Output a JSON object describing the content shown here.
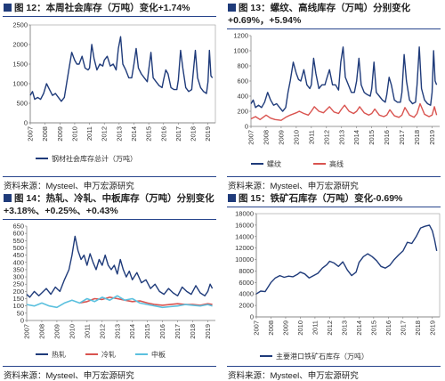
{
  "panels": [
    {
      "id": "p12",
      "title": "图 12：本周社会库存（万吨）变化+1.74%",
      "source": "资料来源：Mysteel、申万宏源研究",
      "chart_data": {
        "type": "line",
        "ylim": [
          0,
          2500
        ],
        "yticks": [
          0,
          500,
          1000,
          1500,
          2000,
          2500
        ],
        "xlim": [
          2007,
          2019.5
        ],
        "xticks": [
          "2007",
          "2008",
          "2009",
          "2010",
          "2011",
          "2012",
          "2013",
          "2014",
          "2015",
          "2016",
          "2017",
          "2018",
          "2019"
        ],
        "box": true,
        "series": [
          {
            "name": "钢材社会库存总计（万吨）",
            "color": "#1f3b7a",
            "x": [
              2007,
              2007.15,
              2007.3,
              2007.5,
              2007.7,
              2007.9,
              2008.1,
              2008.3,
              2008.5,
              2008.7,
              2008.9,
              2009.1,
              2009.3,
              2009.45,
              2009.6,
              2009.8,
              2010.0,
              2010.15,
              2010.3,
              2010.5,
              2010.7,
              2010.9,
              2011.0,
              2011.15,
              2011.3,
              2011.5,
              2011.7,
              2011.9,
              2012.0,
              2012.2,
              2012.4,
              2012.6,
              2012.8,
              2012.95,
              2013.1,
              2013.25,
              2013.45,
              2013.65,
              2013.85,
              2014.0,
              2014.15,
              2014.3,
              2014.5,
              2014.7,
              2014.9,
              2015.0,
              2015.15,
              2015.3,
              2015.5,
              2015.7,
              2015.9,
              2016.0,
              2016.15,
              2016.3,
              2016.5,
              2016.7,
              2016.9,
              2017.0,
              2017.15,
              2017.3,
              2017.5,
              2017.7,
              2017.9,
              2018.0,
              2018.15,
              2018.3,
              2018.5,
              2018.7,
              2018.9,
              2019.0,
              2019.1,
              2019.2,
              2019.3
            ],
            "y": [
              700,
              800,
              600,
              650,
              600,
              750,
              1000,
              850,
              700,
              750,
              650,
              550,
              650,
              1000,
              1350,
              1800,
              1600,
              1500,
              1500,
              1700,
              1400,
              1350,
              1400,
              2000,
              1650,
              1350,
              1500,
              1450,
              1600,
              1700,
              1450,
              1500,
              1350,
              1900,
              2200,
              1500,
              1350,
              1150,
              1150,
              1500,
              1900,
              1400,
              1250,
              1150,
              1050,
              1350,
              1800,
              1150,
              1050,
              950,
              900,
              1100,
              1350,
              1250,
              900,
              850,
              850,
              1100,
              1850,
              1400,
              900,
              800,
              850,
              1250,
              1850,
              1150,
              900,
              800,
              750,
              1050,
              1850,
              1200,
              1150
            ]
          }
        ]
      }
    },
    {
      "id": "p13",
      "title": "图 13：螺纹、高线库存（万吨）分别变化+0.69%，+5.94%",
      "source": "资料来源：Mysteel、申万宏源研究",
      "chart_data": {
        "type": "line",
        "ylim": [
          0,
          1200
        ],
        "yticks": [
          0,
          200,
          400,
          600,
          800,
          1000,
          1200
        ],
        "xlim": [
          2007,
          2019.5
        ],
        "xticks": [
          "2007",
          "2008",
          "2009",
          "2010",
          "2011",
          "2012",
          "2013",
          "2014",
          "2015",
          "2016",
          "2017",
          "2018",
          "2019"
        ],
        "box": false,
        "series": [
          {
            "name": "螺纹",
            "color": "#1f3b7a",
            "x": [
              2007,
              2007.15,
              2007.3,
              2007.5,
              2007.7,
              2007.9,
              2008.1,
              2008.3,
              2008.5,
              2008.7,
              2008.9,
              2009.1,
              2009.3,
              2009.45,
              2009.6,
              2009.8,
              2010.0,
              2010.15,
              2010.3,
              2010.5,
              2010.7,
              2010.9,
              2011.0,
              2011.15,
              2011.3,
              2011.5,
              2011.7,
              2011.9,
              2012.0,
              2012.2,
              2012.4,
              2012.6,
              2012.8,
              2012.95,
              2013.1,
              2013.25,
              2013.45,
              2013.65,
              2013.85,
              2014.0,
              2014.15,
              2014.3,
              2014.5,
              2014.7,
              2014.9,
              2015.0,
              2015.15,
              2015.3,
              2015.5,
              2015.7,
              2015.9,
              2016.0,
              2016.15,
              2016.3,
              2016.5,
              2016.7,
              2016.9,
              2017.0,
              2017.15,
              2017.3,
              2017.5,
              2017.7,
              2017.9,
              2018.0,
              2018.15,
              2018.3,
              2018.5,
              2018.7,
              2018.9,
              2019.0,
              2019.1,
              2019.2,
              2019.3
            ],
            "y": [
              300,
              350,
              250,
              280,
              250,
              320,
              450,
              350,
              280,
              300,
              250,
              200,
              250,
              450,
              600,
              850,
              700,
              620,
              600,
              750,
              550,
              500,
              550,
              900,
              700,
              500,
              550,
              550,
              620,
              750,
              550,
              550,
              480,
              850,
              1050,
              650,
              550,
              450,
              450,
              600,
              900,
              550,
              450,
              420,
              400,
              500,
              850,
              450,
              400,
              350,
              320,
              420,
              650,
              550,
              350,
              320,
              320,
              450,
              950,
              600,
              350,
              300,
              320,
              550,
              1050,
              500,
              350,
              300,
              280,
              450,
              1000,
              600,
              550
            ]
          },
          {
            "name": "高线",
            "color": "#d9534f",
            "x": [
              2007,
              2007.3,
              2007.6,
              2008.0,
              2008.3,
              2008.6,
              2009.0,
              2009.3,
              2009.6,
              2010.0,
              2010.2,
              2010.5,
              2010.8,
              2011.0,
              2011.2,
              2011.5,
              2011.8,
              2012.0,
              2012.2,
              2012.5,
              2012.8,
              2013.0,
              2013.2,
              2013.5,
              2013.8,
              2014.0,
              2014.2,
              2014.5,
              2014.8,
              2015.0,
              2015.2,
              2015.5,
              2015.8,
              2016.0,
              2016.2,
              2016.5,
              2016.8,
              2017.0,
              2017.2,
              2017.5,
              2017.8,
              2018.0,
              2018.2,
              2018.5,
              2018.8,
              2019.0,
              2019.15,
              2019.3
            ],
            "y": [
              100,
              130,
              90,
              150,
              110,
              90,
              80,
              120,
              150,
              180,
              200,
              170,
              150,
              200,
              260,
              200,
              180,
              220,
              260,
              190,
              170,
              230,
              280,
              200,
              170,
              200,
              260,
              180,
              150,
              170,
              230,
              150,
              130,
              150,
              220,
              140,
              120,
              150,
              250,
              150,
              120,
              170,
              300,
              160,
              130,
              150,
              260,
              150
            ]
          }
        ]
      }
    },
    {
      "id": "p14",
      "title": "图 14：热轧、冷轧、中板库存（万吨）分别变化+3.18%、+0.25%、+0.43%",
      "source": "资料来源：Mysteel、申万宏源研究",
      "chart_data": {
        "type": "line",
        "ylim": [
          0,
          650
        ],
        "yticks": [
          0,
          50,
          100,
          150,
          200,
          250,
          300,
          350,
          400,
          450,
          500,
          550,
          600,
          650
        ],
        "xlim": [
          2007,
          2019.5
        ],
        "xticks": [
          "2007",
          "2008",
          "2009",
          "2010",
          "2011",
          "2012",
          "2013",
          "2014",
          "2015",
          "2016",
          "2017",
          "2018",
          "2019"
        ],
        "box": false,
        "series": [
          {
            "name": "热轧",
            "color": "#1f3b7a",
            "x": [
              2007,
              2007.2,
              2007.5,
              2007.8,
              2008.0,
              2008.3,
              2008.6,
              2008.9,
              2009.2,
              2009.5,
              2009.8,
              2010.0,
              2010.2,
              2010.4,
              2010.6,
              2010.8,
              2011.0,
              2011.2,
              2011.4,
              2011.6,
              2011.8,
              2012.0,
              2012.2,
              2012.4,
              2012.6,
              2012.8,
              2013.0,
              2013.2,
              2013.4,
              2013.6,
              2013.8,
              2014.0,
              2014.3,
              2014.6,
              2014.9,
              2015.2,
              2015.5,
              2015.8,
              2016.1,
              2016.4,
              2016.7,
              2017.0,
              2017.3,
              2017.6,
              2017.9,
              2018.2,
              2018.5,
              2018.8,
              2019.0,
              2019.15,
              2019.3
            ],
            "y": [
              180,
              160,
              200,
              170,
              190,
              220,
              180,
              230,
              200,
              280,
              350,
              450,
              580,
              480,
              420,
              450,
              380,
              460,
              400,
              350,
              420,
              380,
              450,
              380,
              350,
              380,
              320,
              420,
              350,
              300,
              340,
              280,
              330,
              260,
              280,
              220,
              250,
              200,
              180,
              220,
              190,
              170,
              230,
              200,
              180,
              240,
              190,
              170,
              200,
              250,
              220
            ]
          },
          {
            "name": "冷轧",
            "color": "#d9534f",
            "x": [
              2010.5,
              2011.0,
              2011.5,
              2012.0,
              2012.5,
              2013.0,
              2013.5,
              2014.0,
              2014.5,
              2015.0,
              2015.5,
              2016.0,
              2016.5,
              2017.0,
              2017.5,
              2018.0,
              2018.5,
              2019.0,
              2019.3
            ],
            "y": [
              120,
              130,
              150,
              145,
              160,
              150,
              140,
              130,
              135,
              120,
              110,
              105,
              110,
              115,
              110,
              110,
              105,
              115,
              110
            ]
          },
          {
            "name": "中板",
            "color": "#5bc0de",
            "x": [
              2007,
              2007.5,
              2008.0,
              2008.5,
              2009.0,
              2009.5,
              2010.0,
              2010.5,
              2011.0,
              2011.5,
              2012.0,
              2012.5,
              2013.0,
              2013.5,
              2014.0,
              2014.5,
              2015.0,
              2015.5,
              2016.0,
              2016.5,
              2017.0,
              2017.5,
              2018.0,
              2018.5,
              2019.0,
              2019.3
            ],
            "y": [
              110,
              100,
              120,
              100,
              90,
              120,
              140,
              120,
              150,
              130,
              160,
              140,
              170,
              140,
              150,
              120,
              110,
              100,
              90,
              95,
              100,
              110,
              105,
              100,
              110,
              100
            ]
          }
        ]
      }
    },
    {
      "id": "p15",
      "title": "图 15：铁矿石库存（万吨）变化-0.69%",
      "source": "资料来源：Mysteel、申万宏源研究",
      "chart_data": {
        "type": "line",
        "ylim": [
          0,
          18000
        ],
        "yticks": [
          0,
          2000,
          4000,
          6000,
          8000,
          10000,
          12000,
          14000,
          16000,
          18000
        ],
        "xlim": [
          2007,
          2019.5
        ],
        "xticks": [
          "2007",
          "2008",
          "2009",
          "2010",
          "2011",
          "2012",
          "2013",
          "2014",
          "2015",
          "2016",
          "2017",
          "2018",
          "2019"
        ],
        "box": true,
        "series": [
          {
            "name": "主要港口铁矿石库存（万吨）",
            "color": "#1f3b7a",
            "x": [
              2007,
              2007.3,
              2007.6,
              2008.0,
              2008.3,
              2008.6,
              2008.9,
              2009.2,
              2009.5,
              2009.8,
              2010.0,
              2010.3,
              2010.6,
              2010.9,
              2011.2,
              2011.5,
              2011.8,
              2012.0,
              2012.3,
              2012.6,
              2012.9,
              2013.2,
              2013.5,
              2013.8,
              2014.0,
              2014.3,
              2014.6,
              2014.9,
              2015.2,
              2015.5,
              2015.8,
              2016.1,
              2016.4,
              2016.7,
              2017.0,
              2017.3,
              2017.6,
              2017.9,
              2018.2,
              2018.5,
              2018.8,
              2019.0,
              2019.15,
              2019.3
            ],
            "y": [
              4000,
              4500,
              4400,
              6000,
              6800,
              7200,
              6900,
              7100,
              7000,
              7400,
              7800,
              7500,
              6800,
              7200,
              7600,
              8500,
              9100,
              9700,
              9400,
              8800,
              9600,
              8200,
              7200,
              7800,
              9500,
              10500,
              11000,
              10500,
              9800,
              8800,
              8500,
              9000,
              10000,
              10800,
              11500,
              13000,
              12800,
              14000,
              15500,
              15800,
              16000,
              15000,
              13500,
              11500
            ]
          }
        ]
      }
    }
  ]
}
